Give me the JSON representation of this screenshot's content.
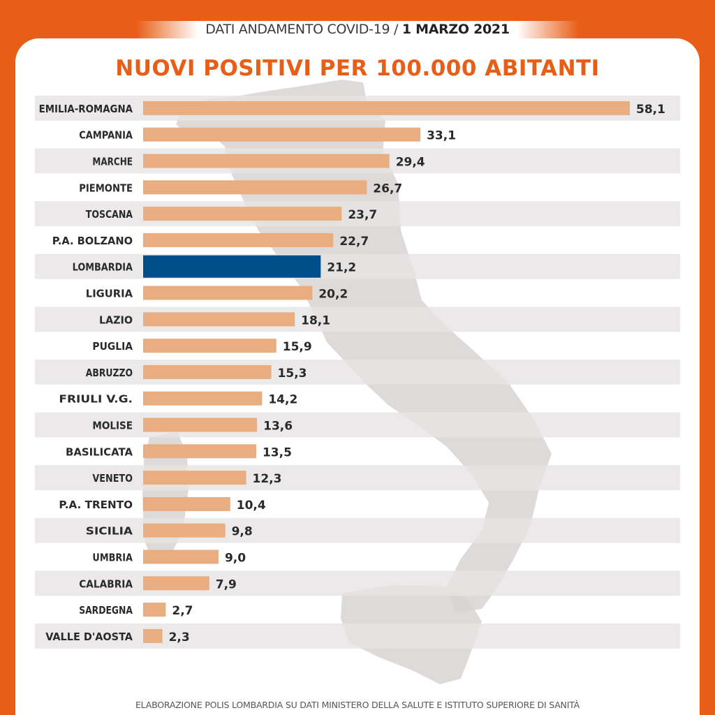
{
  "header": {
    "prefix": "DATI ANDAMENTO COVID-19 / ",
    "date": "1 MARZO 2021"
  },
  "footer": "ELABORAZIONE POLIS LOMBARDIA SU DATI MINISTERO DELLA SALUTE E ISTITUTO SUPERIORE DI SANITÀ",
  "colors": {
    "frame": "#e85e16",
    "bar": "#e9ad80",
    "highlight": "#004f8b",
    "stripe": "#e6e3e3",
    "map": "#d9d4d4"
  },
  "chart_data": {
    "type": "bar",
    "orientation": "horizontal",
    "title": "NUOVI POSITIVI PER 100.000 ABITANTI",
    "categories": [
      "EMILIA-ROMAGNA",
      "CAMPANIA",
      "MARCHE",
      "PIEMONTE",
      "TOSCANA",
      "P.A. BOLZANO",
      "LOMBARDIA",
      "LIGURIA",
      "LAZIO",
      "PUGLIA",
      "ABRUZZO",
      "FRIULI V.G.",
      "MOLISE",
      "BASILICATA",
      "VENETO",
      "P.A. TRENTO",
      "SICILIA",
      "UMBRIA",
      "CALABRIA",
      "SARDEGNA",
      "VALLE D'AOSTA"
    ],
    "values": [
      58.1,
      33.1,
      29.4,
      26.7,
      23.7,
      22.7,
      21.2,
      20.2,
      18.1,
      15.9,
      15.3,
      14.2,
      13.6,
      13.5,
      12.3,
      10.4,
      9.8,
      9.0,
      7.9,
      2.7,
      2.3
    ],
    "value_labels": [
      "58,1",
      "33,1",
      "29,4",
      "26,7",
      "23,7",
      "22,7",
      "21,2",
      "20,2",
      "18,1",
      "15,9",
      "15,3",
      "14,2",
      "13,6",
      "13,5",
      "12,3",
      "10,4",
      "9,8",
      "9,0",
      "7,9",
      "2,7",
      "2,3"
    ],
    "highlight": "LOMBARDIA",
    "xlim": [
      0,
      58.1
    ],
    "grid": false,
    "legend": "none"
  }
}
